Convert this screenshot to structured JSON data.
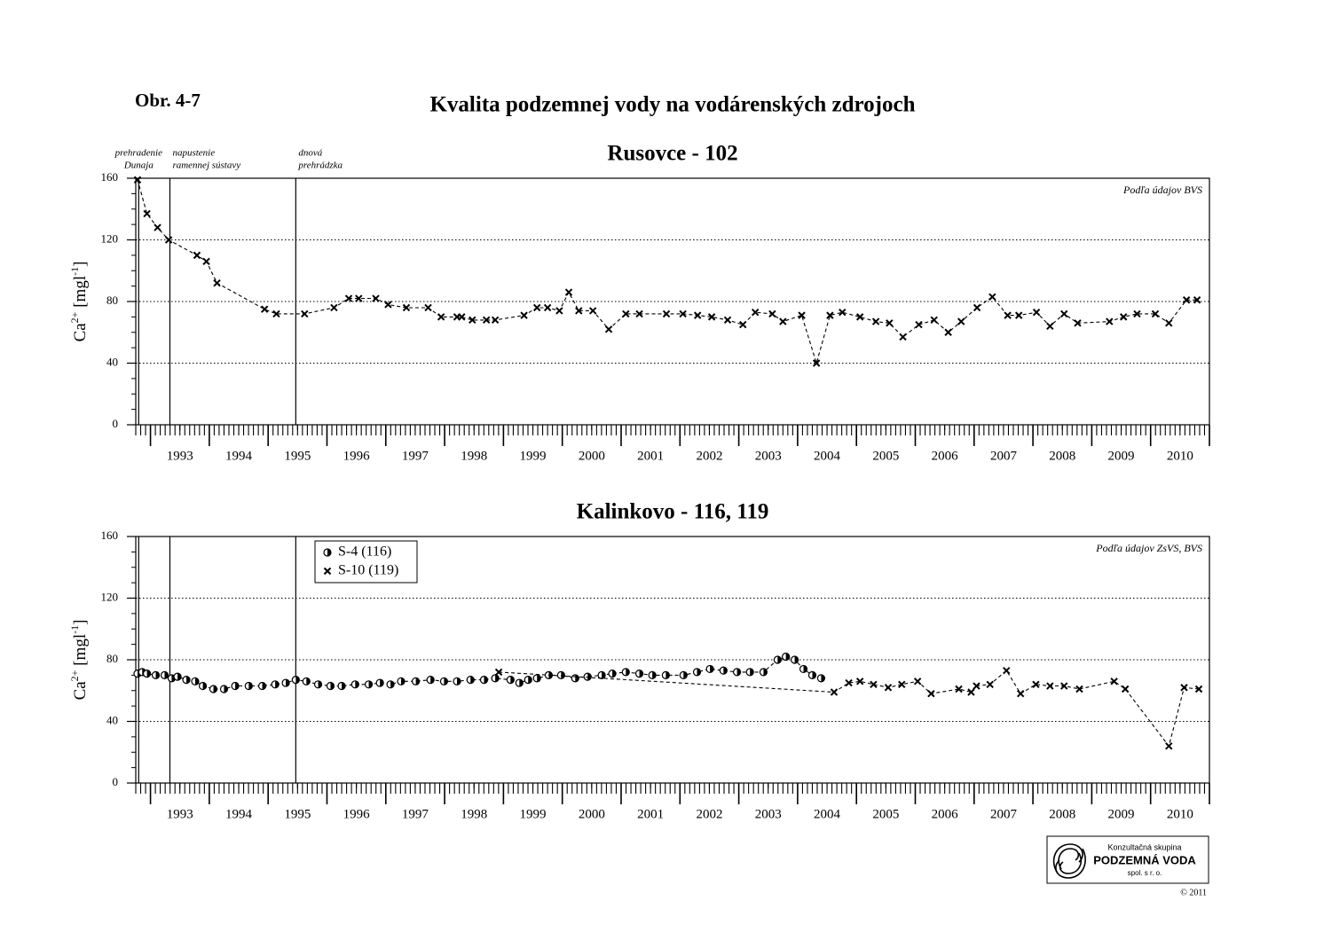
{
  "header": {
    "figure": "Obr. 4-7",
    "title": "Kvalita podzemnej vody na vodárenských zdrojoch"
  },
  "chart_data": [
    {
      "type": "line",
      "title": "Rusovce - 102",
      "source": "Podľa údajov BVS",
      "y_label": [
        "Ca",
        "2+",
        " [mgl",
        "-1",
        "]"
      ],
      "xlim": [
        1992.75,
        2011.0
      ],
      "ylim": [
        0,
        160
      ],
      "yticks": [
        0,
        40,
        80,
        120,
        160
      ],
      "grid": true,
      "xticks": [
        {
          "value": 1993.5,
          "label": "1993"
        },
        {
          "value": 1994.5,
          "label": "1994"
        },
        {
          "value": 1995.5,
          "label": "1995"
        },
        {
          "value": 1996.5,
          "label": "1996"
        },
        {
          "value": 1997.5,
          "label": "1997"
        },
        {
          "value": 1998.5,
          "label": "1998"
        },
        {
          "value": 1999.5,
          "label": "1999"
        },
        {
          "value": 2000.5,
          "label": "2000"
        },
        {
          "value": 2001.5,
          "label": "2001"
        },
        {
          "value": 2002.5,
          "label": "2002"
        },
        {
          "value": 2003.5,
          "label": "2003"
        },
        {
          "value": 2004.5,
          "label": "2004"
        },
        {
          "value": 2005.5,
          "label": "2005"
        },
        {
          "value": 2006.5,
          "label": "2006"
        },
        {
          "value": 2007.5,
          "label": "2007"
        },
        {
          "value": 2008.5,
          "label": "2008"
        },
        {
          "value": 2009.5,
          "label": "2009"
        },
        {
          "value": 2010.5,
          "label": "2010"
        }
      ],
      "events": [
        {
          "x": 1992.8,
          "label": [
            "prehradenie",
            "Dunaja"
          ]
        },
        {
          "x": 1993.33,
          "label": [
            "napustenie",
            "ramennej sústavy"
          ]
        },
        {
          "x": 1995.47,
          "label": [
            "dnová",
            "prehrádzka"
          ]
        }
      ],
      "series": [
        {
          "marker": "x",
          "color": "#000000",
          "x": [
            1992.78,
            1992.94,
            1993.12,
            1993.31,
            1993.79,
            1993.95,
            1994.13,
            1994.94,
            1995.14,
            1995.62,
            1996.12,
            1996.37,
            1996.54,
            1996.83,
            1997.04,
            1997.35,
            1997.72,
            1997.94,
            1998.21,
            1998.29,
            1998.47,
            1998.71,
            1998.86,
            1999.35,
            1999.57,
            1999.75,
            1999.95,
            2000.11,
            2000.28,
            2000.52,
            2000.79,
            2001.08,
            2001.31,
            2001.77,
            2002.05,
            2002.3,
            2002.54,
            2002.81,
            2003.07,
            2003.28,
            2003.57,
            2003.75,
            2004.07,
            2004.32,
            2004.55,
            2004.76,
            2005.06,
            2005.33,
            2005.56,
            2005.79,
            2006.06,
            2006.32,
            2006.56,
            2006.78,
            2007.05,
            2007.31,
            2007.57,
            2007.76,
            2008.06,
            2008.29,
            2008.53,
            2008.76,
            2009.3,
            2009.54,
            2009.77,
            2010.08,
            2010.31,
            2010.61,
            2010.79
          ],
          "values": [
            159,
            137,
            128,
            120,
            110,
            106,
            92,
            75,
            72,
            72,
            76,
            82,
            82,
            82,
            78,
            76,
            76,
            70,
            70,
            70,
            68,
            68,
            68,
            71,
            76,
            76,
            74,
            86,
            74,
            74,
            62,
            72,
            72,
            72,
            72,
            71,
            70,
            68,
            65,
            73,
            72,
            67,
            71,
            40,
            71,
            73,
            70,
            67,
            66,
            57,
            65,
            68,
            60,
            67,
            76,
            83,
            71,
            71,
            73,
            64,
            72,
            66,
            67,
            70,
            72,
            72,
            66,
            81,
            81
          ]
        }
      ]
    },
    {
      "type": "line",
      "title": "Kalinkovo - 116, 119",
      "source": "Podľa údajov ZsVS, BVS",
      "y_label": [
        "Ca",
        "2+",
        " [mgl",
        "-1",
        "]"
      ],
      "xlim": [
        1992.75,
        2011.0
      ],
      "ylim": [
        0,
        160
      ],
      "yticks": [
        0,
        40,
        80,
        120,
        160
      ],
      "grid": true,
      "legend": "upper left",
      "xticks": [
        {
          "value": 1993.5,
          "label": "1993"
        },
        {
          "value": 1994.5,
          "label": "1994"
        },
        {
          "value": 1995.5,
          "label": "1995"
        },
        {
          "value": 1996.5,
          "label": "1996"
        },
        {
          "value": 1997.5,
          "label": "1997"
        },
        {
          "value": 1998.5,
          "label": "1998"
        },
        {
          "value": 1999.5,
          "label": "1999"
        },
        {
          "value": 2000.5,
          "label": "2000"
        },
        {
          "value": 2001.5,
          "label": "2001"
        },
        {
          "value": 2002.5,
          "label": "2002"
        },
        {
          "value": 2003.5,
          "label": "2003"
        },
        {
          "value": 2004.5,
          "label": "2004"
        },
        {
          "value": 2005.5,
          "label": "2005"
        },
        {
          "value": 2006.5,
          "label": "2006"
        },
        {
          "value": 2007.5,
          "label": "2007"
        },
        {
          "value": 2008.5,
          "label": "2008"
        },
        {
          "value": 2009.5,
          "label": "2009"
        },
        {
          "value": 2010.5,
          "label": "2010"
        }
      ],
      "events": [
        {
          "x": 1992.8
        },
        {
          "x": 1993.33
        },
        {
          "x": 1995.47
        }
      ],
      "series": [
        {
          "name": "S-4 (116)",
          "marker": "half-circle",
          "color": "#000000",
          "x": [
            1992.78,
            1992.86,
            1992.94,
            1993.09,
            1993.24,
            1993.36,
            1993.46,
            1993.61,
            1993.76,
            1993.89,
            1994.07,
            1994.25,
            1994.44,
            1994.67,
            1994.9,
            1995.12,
            1995.3,
            1995.47,
            1995.65,
            1995.85,
            1996.06,
            1996.25,
            1996.48,
            1996.71,
            1996.9,
            1997.08,
            1997.26,
            1997.51,
            1997.76,
            1997.99,
            1998.21,
            1998.44,
            1998.67,
            1998.86,
            1999.12,
            1999.27,
            1999.42,
            1999.57,
            1999.77,
            1999.98,
            2000.22,
            2000.43,
            2000.67,
            2000.85,
            2001.08,
            2001.31,
            2001.53,
            2001.76,
            2002.06,
            2002.29,
            2002.51,
            2002.74,
            2002.97,
            2003.19,
            2003.42,
            2003.66,
            2003.8,
            2003.95,
            2004.1,
            2004.25,
            2004.4
          ],
          "values": [
            71,
            72,
            71,
            70,
            70,
            68,
            69,
            67,
            66,
            63,
            61,
            61,
            63,
            63,
            63,
            64,
            65,
            67,
            66,
            64,
            63,
            63,
            64,
            64,
            65,
            64,
            66,
            66,
            67,
            66,
            66,
            67,
            67,
            68,
            67,
            65,
            67,
            68,
            70,
            70,
            68,
            69,
            70,
            71,
            72,
            71,
            70,
            70,
            70,
            72,
            74,
            73,
            72,
            72,
            72,
            80,
            82,
            80,
            74,
            70,
            68
          ]
        },
        {
          "name": "S-10 (119)",
          "marker": "x",
          "color": "#000000",
          "x": [
            1998.92,
            2004.62,
            2004.87,
            2005.06,
            2005.29,
            2005.54,
            2005.77,
            2006.04,
            2006.27,
            2006.74,
            2006.95,
            2007.04,
            2007.27,
            2007.55,
            2007.79,
            2008.05,
            2008.29,
            2008.53,
            2008.79,
            2009.38,
            2009.57,
            2010.31,
            2010.57,
            2010.82
          ],
          "values": [
            72,
            59,
            65,
            66,
            64,
            62,
            64,
            66,
            58,
            61,
            59,
            63,
            64,
            73,
            58,
            64,
            63,
            63,
            61,
            66,
            61,
            24,
            62,
            61
          ]
        }
      ]
    }
  ],
  "logo": {
    "line1": "Konzultačná skupina",
    "line2": "PODZEMNÁ VODA",
    "line3": "spol. s r. o.",
    "copyright": "© 2011"
  }
}
